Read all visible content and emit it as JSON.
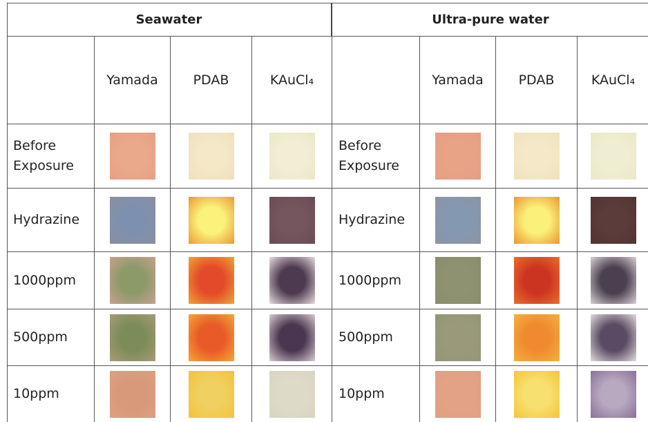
{
  "table": {
    "groups": [
      {
        "title": "Seawater",
        "columns": [
          "Yamada",
          "PDAB",
          "KAuCl₄"
        ],
        "rows": [
          "Before Exposure",
          "Hydrazine",
          "1000ppm",
          "500ppm",
          "10ppm"
        ]
      },
      {
        "title": "Ultra-pure water",
        "columns": [
          "Yamada",
          "PDAB",
          "KAuCl₄"
        ],
        "rows": [
          "Before Exposure",
          "Hydrazine",
          "1000ppm",
          "500ppm",
          "10ppm"
        ]
      }
    ]
  }
}
